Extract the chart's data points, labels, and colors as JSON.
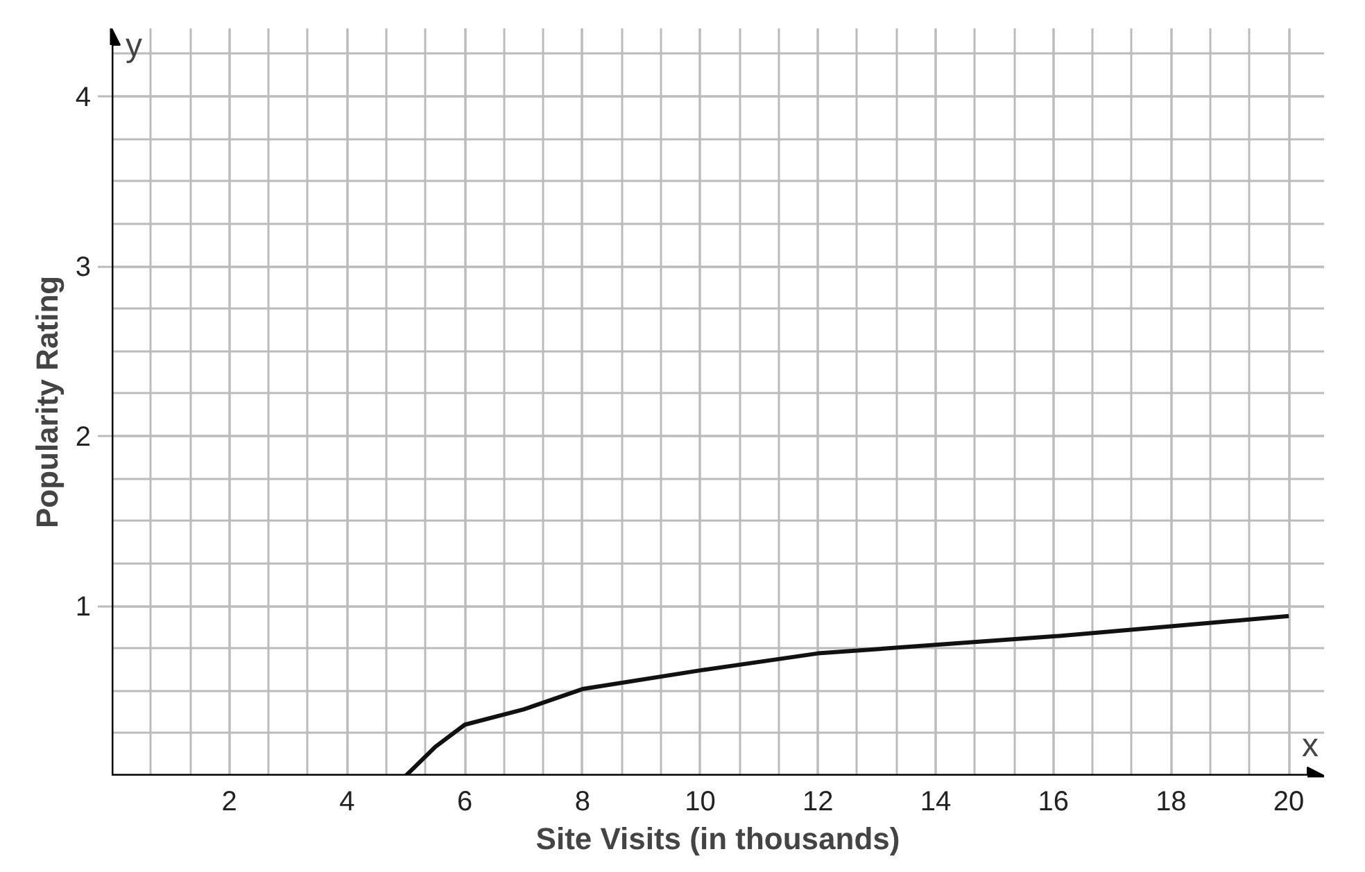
{
  "chart_data": {
    "type": "line",
    "xlabel": "Site Visits (in thousands)",
    "ylabel": "Popularity Rating",
    "annotations": [
      "x",
      "y"
    ],
    "x": [
      5,
      5.5,
      6,
      7,
      8,
      10,
      12,
      14,
      16,
      18,
      20
    ],
    "series": [
      {
        "color": "#111111",
        "values": [
          0,
          0.17,
          0.3,
          0.39,
          0.51,
          0.62,
          0.72,
          0.77,
          0.82,
          0.88,
          0.94
        ]
      }
    ],
    "xlim": [
      0,
      20.6
    ],
    "ylim": [
      0,
      4.4
    ],
    "xticks": [
      2,
      4,
      6,
      8,
      10,
      12,
      14,
      16,
      18,
      20
    ],
    "yticks": [
      1,
      2,
      3,
      4
    ],
    "grid": true
  }
}
